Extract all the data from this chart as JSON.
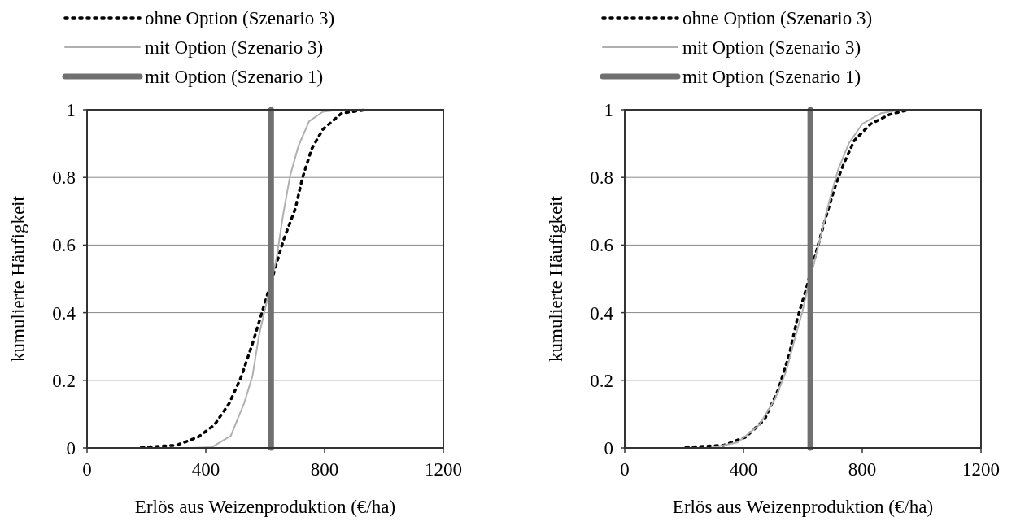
{
  "chart_data": [
    {
      "type": "line",
      "xlabel": "Erlös aus Weizenproduktion (€/ha)",
      "ylabel": "kumulierte Häufigkeit",
      "xlim": [
        0,
        1200
      ],
      "xticks": [
        0,
        400,
        800,
        1200
      ],
      "ylim": [
        0,
        1
      ],
      "yticks": [
        0,
        0.2,
        0.4,
        0.6,
        0.8,
        1
      ],
      "grid": "y",
      "legend": "top",
      "series": [
        {
          "name": "ohne Option (Szenario 3)",
          "color": "#000000",
          "line_style": "dotted",
          "x": [
            183,
            301,
            374,
            429,
            479,
            520,
            557,
            588,
            620,
            634,
            661,
            702,
            725,
            757,
            794,
            858,
            940
          ],
          "values": [
            0.002,
            0.008,
            0.032,
            0.068,
            0.132,
            0.212,
            0.308,
            0.397,
            0.49,
            0.533,
            0.613,
            0.709,
            0.797,
            0.885,
            0.942,
            0.99,
            1
          ]
        },
        {
          "name": "mit Option (Szenario 3)",
          "color": "#b0b0b0",
          "line_style": "solid",
          "x": [
            347,
            420,
            484,
            529,
            557,
            579,
            602,
            611,
            639,
            661,
            684,
            712,
            748,
            794,
            849
          ],
          "values": [
            0,
            0.002,
            0.036,
            0.132,
            0.212,
            0.332,
            0.42,
            0.453,
            0.565,
            0.693,
            0.805,
            0.893,
            0.966,
            0.994,
            1
          ]
        },
        {
          "name": "mit Option (Szenario 1)",
          "color": "#707070",
          "line_style": "solid",
          "x": [
            620,
            620
          ],
          "values": [
            0,
            1
          ]
        }
      ]
    },
    {
      "type": "line",
      "xlabel": "Erlös aus Weizenproduktion (€/ha)",
      "ylabel": "kumulierte Häufigkeit",
      "xlim": [
        0,
        1200
      ],
      "xticks": [
        0,
        400,
        800,
        1200
      ],
      "ylim": [
        0,
        1
      ],
      "yticks": [
        0,
        0.2,
        0.4,
        0.6,
        0.8,
        1
      ],
      "grid": "y",
      "legend": "top",
      "series": [
        {
          "name": "ohne Option (Szenario 3)",
          "color": "#000000",
          "line_style": "dotted",
          "x": [
            206,
            334,
            407,
            471,
            517,
            554,
            581,
            608,
            663,
            681,
            709,
            736,
            773,
            828,
            892,
            956
          ],
          "values": [
            0.002,
            0.008,
            0.032,
            0.084,
            0.172,
            0.276,
            0.381,
            0.461,
            0.637,
            0.693,
            0.774,
            0.837,
            0.909,
            0.958,
            0.986,
            1
          ]
        },
        {
          "name": "mit Option (Szenario 3)",
          "color": "#b0b0b0",
          "line_style": "solid",
          "x": [
            288,
            380,
            453,
            508,
            544,
            576,
            599,
            613,
            645,
            663,
            690,
            718,
            755,
            800,
            864,
            929
          ],
          "values": [
            0,
            0.016,
            0.068,
            0.148,
            0.228,
            0.333,
            0.405,
            0.461,
            0.573,
            0.637,
            0.733,
            0.821,
            0.901,
            0.958,
            0.99,
            1
          ]
        },
        {
          "name": "mit Option (Szenario 1)",
          "color": "#707070",
          "line_style": "solid",
          "x": [
            625,
            625
          ],
          "values": [
            0,
            1
          ]
        }
      ]
    }
  ]
}
